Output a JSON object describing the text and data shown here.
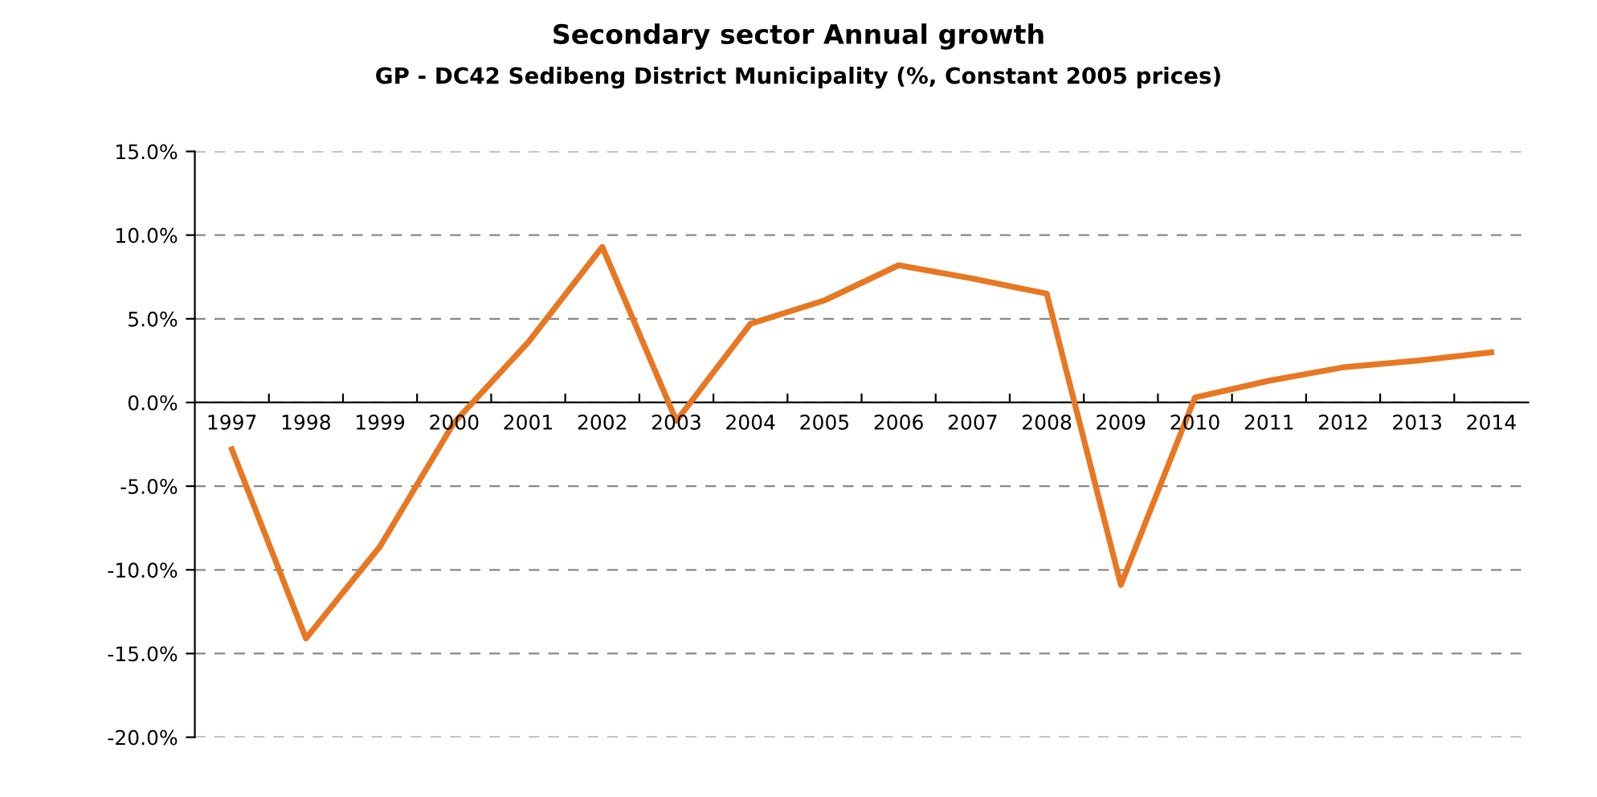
{
  "chart_data": {
    "type": "line",
    "title": "Secondary sector Annual growth",
    "subtitle": "GP - DC42 Sedibeng District Municipality (%, Constant 2005 prices)",
    "categories": [
      "1997",
      "1998",
      "1999",
      "2000",
      "2001",
      "2002",
      "2003",
      "2004",
      "2005",
      "2006",
      "2007",
      "2008",
      "2009",
      "2010",
      "2011",
      "2012",
      "2013",
      "2014"
    ],
    "series": [
      {
        "color": "#e87722",
        "values": [
          -2.8,
          -14.1,
          -8.6,
          -1.2,
          3.6,
          9.3,
          -1.1,
          4.7,
          6.1,
          8.2,
          7.4,
          6.5,
          -10.9,
          0.3,
          1.3,
          2.1,
          2.5,
          3.0
        ]
      }
    ],
    "ylim": [
      -20,
      15
    ],
    "yticks": [
      {
        "value": -20,
        "label": "-20.0%"
      },
      {
        "value": -15,
        "label": "-15.0%"
      },
      {
        "value": -10,
        "label": "-10.0%"
      },
      {
        "value": -5,
        "label": "-5.0%"
      },
      {
        "value": 0,
        "label": "0.0%"
      },
      {
        "value": 5,
        "label": "5.0%"
      },
      {
        "value": 10,
        "label": "10.0%"
      },
      {
        "value": 15,
        "label": "15.0%"
      }
    ],
    "grid": "y",
    "line_style": "solid",
    "marker": "none"
  }
}
